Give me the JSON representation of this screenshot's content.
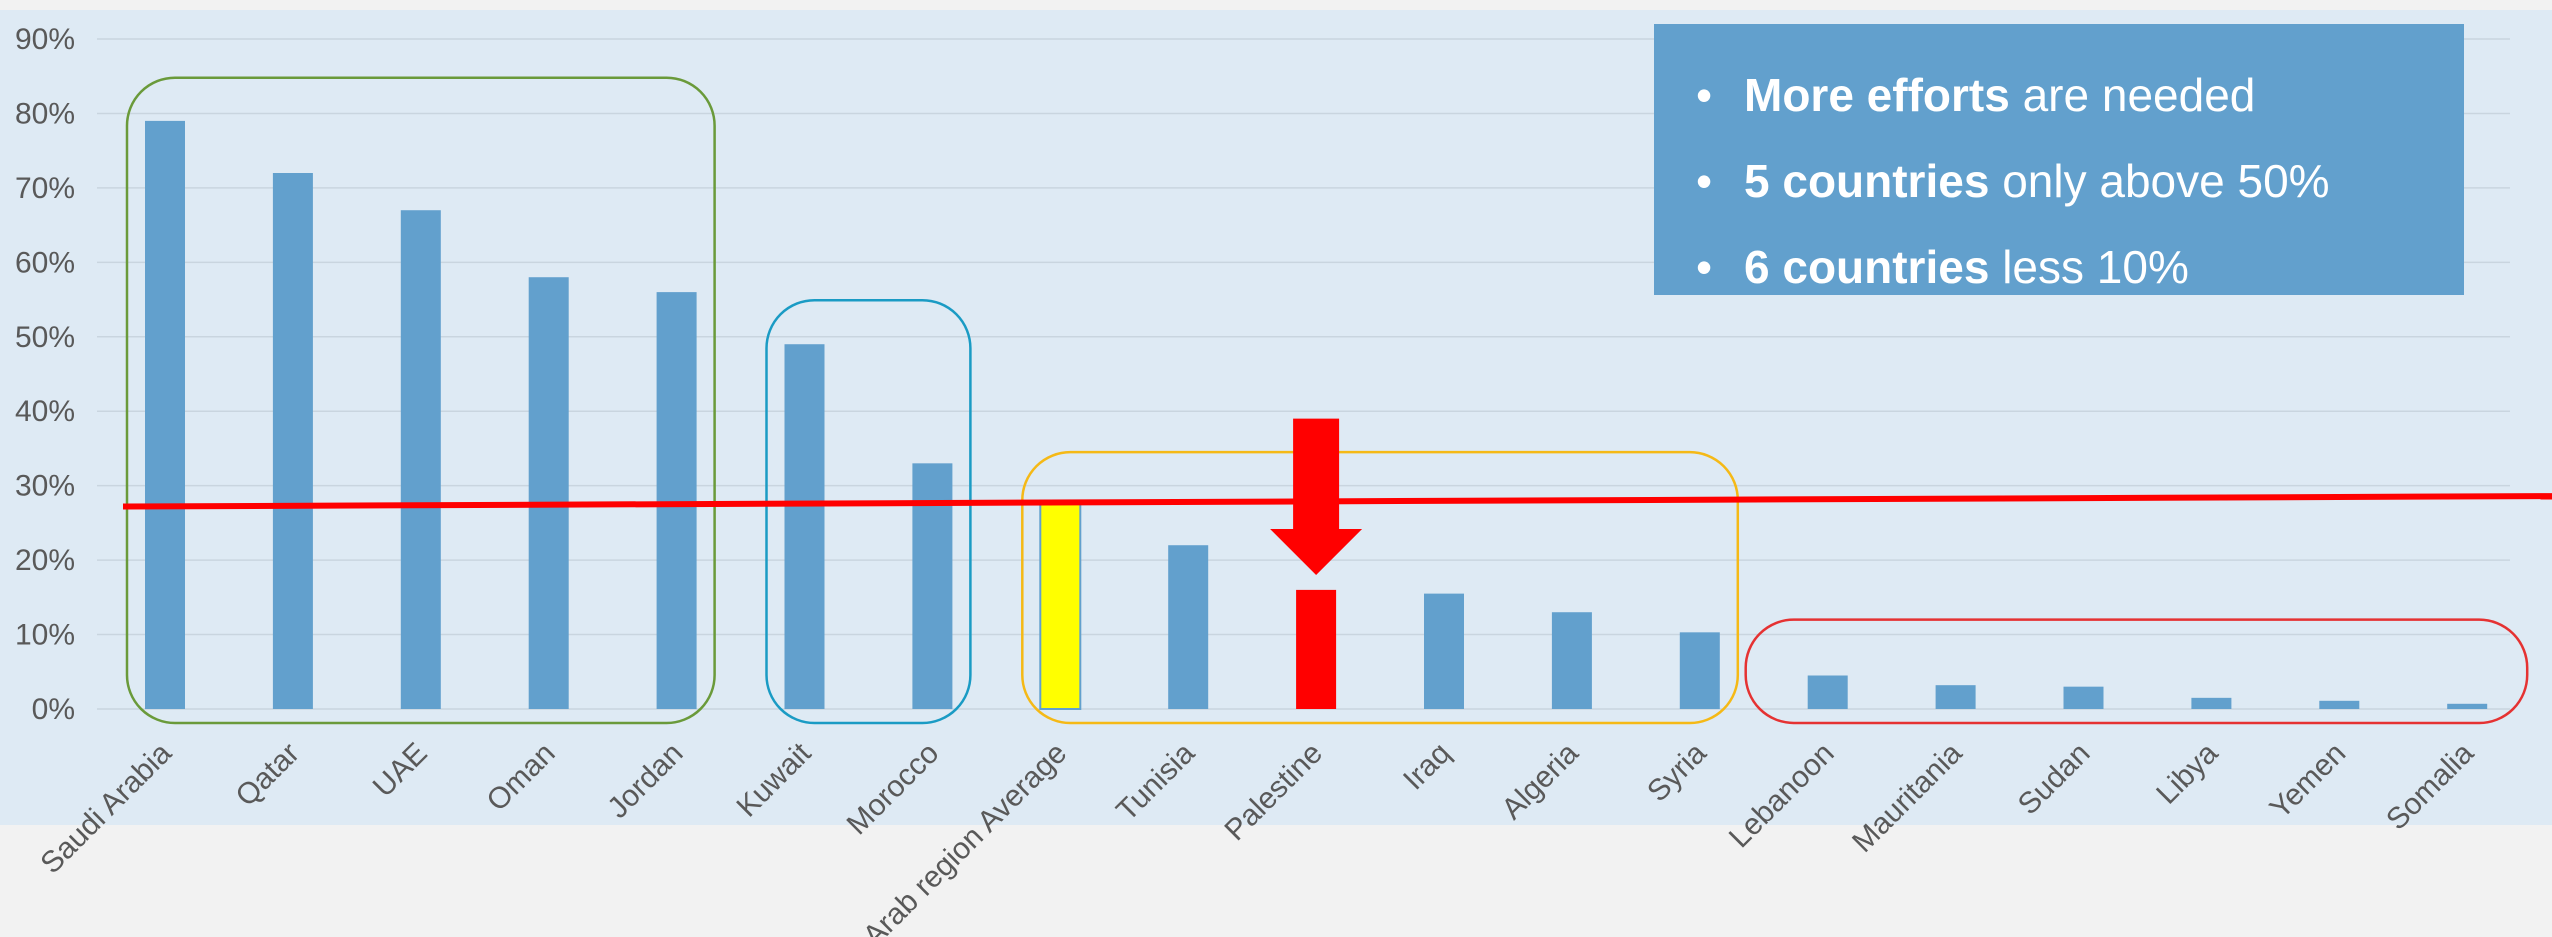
{
  "chart_data": {
    "type": "bar",
    "categories": [
      "Saudi Arabia",
      "Qatar",
      "UAE",
      "Oman",
      "Jordan",
      "Kuwait",
      "Morocco",
      "Arab region Average",
      "Tunisia",
      "Palestine",
      "Iraq",
      "Algeria",
      "Syria",
      "Lebanoon",
      "Mauritania",
      "Sudan",
      "Libya",
      "Yemen",
      "Somalia"
    ],
    "values": [
      79,
      72,
      67,
      58,
      56,
      49,
      33,
      28,
      22,
      16,
      15.5,
      13,
      10.3,
      4.5,
      3.2,
      3.0,
      1.5,
      1.1,
      0.7
    ],
    "ylim": [
      0,
      90
    ],
    "yticks": [
      "0%",
      "10%",
      "20%",
      "30%",
      "40%",
      "50%",
      "60%",
      "70%",
      "80%",
      "90%"
    ],
    "grid": true,
    "highlights": {
      "Arab region Average": "#ffff00",
      "Palestine": "#ff0000"
    },
    "reference_line": {
      "start": 27.2,
      "end": 28.6,
      "color": "#ff0000"
    },
    "groups": [
      {
        "from": 0,
        "to": 4,
        "color": "#6a9a3a"
      },
      {
        "from": 5,
        "to": 6,
        "color": "#1a9bc4"
      },
      {
        "from": 7,
        "to": 12,
        "color": "#f5b916"
      },
      {
        "from": 13,
        "to": 18,
        "color": "#e53232"
      }
    ],
    "arrow": {
      "category": "Palestine",
      "from": 39,
      "to": 18,
      "color": "#ff0000"
    }
  },
  "colors": {
    "bar": "#62a0cd",
    "plot_bg": "#deeaf4",
    "grid": "#c9d5df"
  },
  "callout": {
    "items": [
      {
        "bullet": "•",
        "bold": "More efforts",
        "rest": " are needed"
      },
      {
        "bullet": "•",
        "bold": "5 countries",
        "rest": " only above 50%"
      },
      {
        "bullet": "•",
        "bold": "6 countries",
        "rest": " less 10%"
      }
    ]
  }
}
